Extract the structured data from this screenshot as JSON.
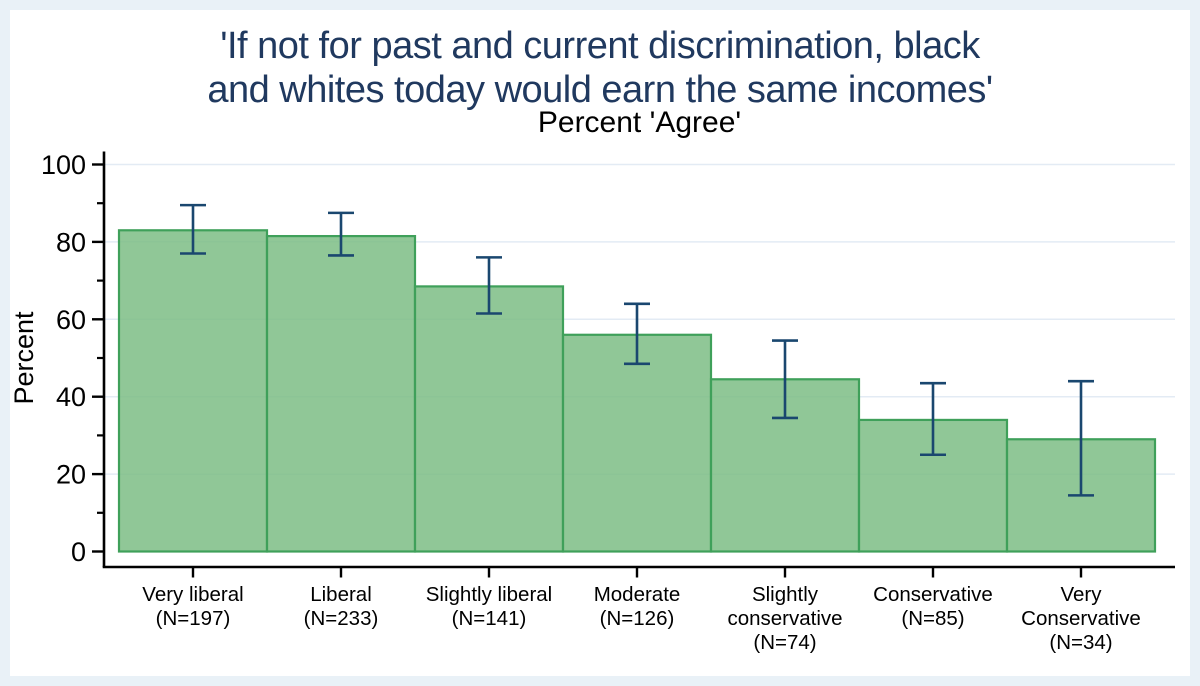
{
  "figure": {
    "title": "'If not for past and current discrimination, black\nand whites today would earn the same incomes'",
    "subtitle": "Percent 'Agree'",
    "ylabel": "Percent"
  },
  "colors": {
    "canvas_bg": "#e9f1f7",
    "figure_bg": "#ffffff",
    "title_text": "#20395f",
    "subtitle_text": "#000000",
    "axis_text": "#000000",
    "axis_line": "#000000",
    "gridline": "#e3ebf4",
    "bar_fill": "#7cbd85",
    "bar_stroke": "#3fa05a",
    "error_bar": "#1a476f"
  },
  "chart_data": {
    "type": "bar",
    "title": "'If not for past and current discrimination, black and whites today would earn the same incomes'",
    "subtitle": "Percent 'Agree'",
    "xlabel": "",
    "ylabel": "Percent",
    "ylim": [
      0,
      100
    ],
    "yticks_major": [
      0,
      20,
      40,
      60,
      80,
      100
    ],
    "yticks_minor": [
      10,
      30,
      50,
      70,
      90
    ],
    "grid": "horizontal-at-major-ticks",
    "legend": "none",
    "bar_gap": 0,
    "categories": [
      "Very liberal",
      "Liberal",
      "Slightly liberal",
      "Moderate",
      "Slightly conservative",
      "Conservative",
      "Very Conservative"
    ],
    "sample_sizes": [
      197,
      233,
      141,
      126,
      74,
      85,
      34
    ],
    "category_label_lines": [
      [
        "Very liberal",
        "(N=197)"
      ],
      [
        "Liberal",
        "(N=233)"
      ],
      [
        "Slightly liberal",
        "(N=141)"
      ],
      [
        "Moderate",
        "(N=126)"
      ],
      [
        "Slightly",
        "conservative",
        "(N=74)"
      ],
      [
        "Conservative",
        "(N=85)"
      ],
      [
        "Very",
        "Conservative",
        "(N=34)"
      ]
    ],
    "values": [
      83,
      81.5,
      68.5,
      56,
      44.5,
      34,
      29
    ],
    "ci_low": [
      77,
      76.5,
      61.5,
      48.5,
      34.5,
      25,
      14.5
    ],
    "ci_high": [
      89.5,
      87.5,
      76,
      64,
      54.5,
      43.5,
      44
    ]
  }
}
